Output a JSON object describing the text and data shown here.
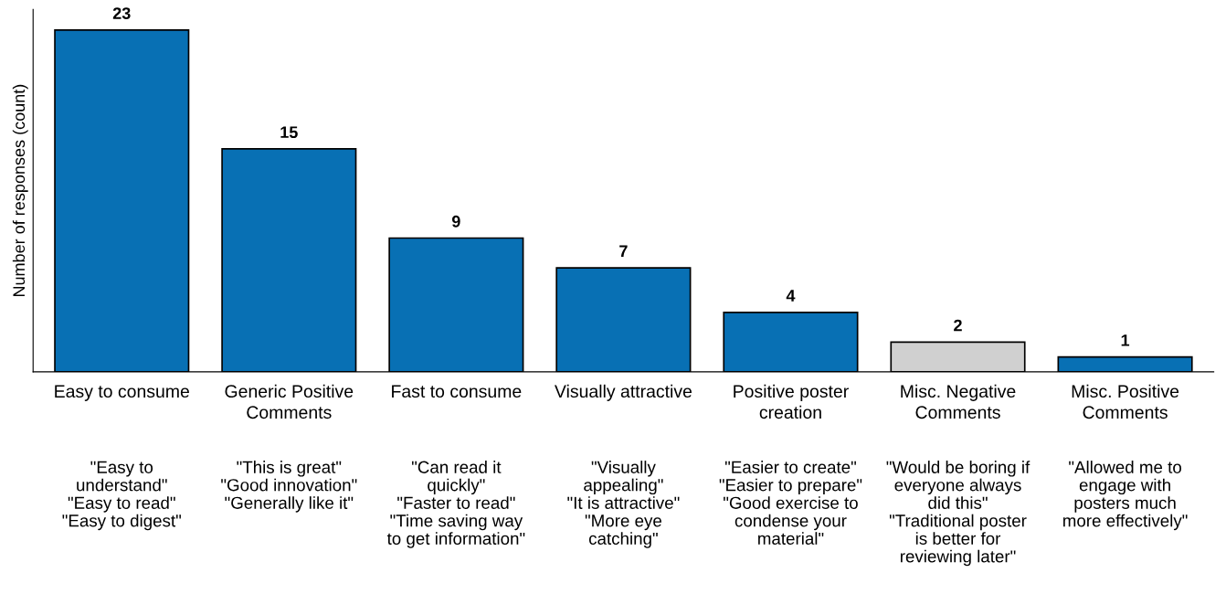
{
  "chart_data": {
    "type": "bar",
    "ylabel": "Number of responses (count)",
    "categories": [
      "Easy to consume",
      "Generic Positive\nComments",
      "Fast to consume",
      "Visually attractive",
      "Positive poster\ncreation",
      "Misc. Negative\nComments",
      "Misc. Positive\nComments"
    ],
    "values": [
      23,
      15,
      9,
      7,
      4,
      2,
      1
    ],
    "colors": [
      "#0870b4",
      "#0870b4",
      "#0870b4",
      "#0870b4",
      "#0870b4",
      "#d0d0d0",
      "#0870b4"
    ],
    "data_labels": true,
    "tick_labels": "x",
    "grid": false,
    "legend": false,
    "annotations": [
      "\"Easy to\nunderstand\"\n\"Easy to read\"\n\"Easy to digest\"",
      "\"This is great\"\n\"Good innovation\"\n\"Generally like it\"",
      "\"Can read it\nquickly\"\n\"Faster to read\"\n\"Time saving way\nto get information\"",
      "\"Visually\nappealing\"\n\"It is attractive\"\n\"More eye\ncatching\"",
      "\"Easier to create\"\n\"Easier to prepare\"\n\"Good exercise to\ncondense your\nmaterial\"",
      "\"Would be boring if\neveryone always\ndid this\"\n\"Traditional poster\nis better for\nreviewing later\"",
      "\"Allowed me to\nengage with\nposters much\nmore effectively\""
    ]
  }
}
